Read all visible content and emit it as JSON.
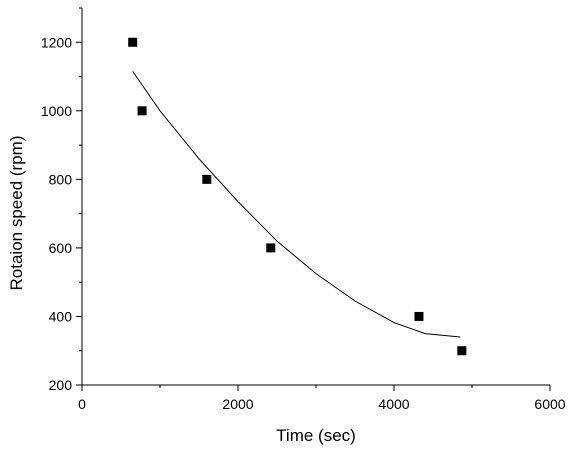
{
  "chart_data": {
    "type": "scatter",
    "title": "",
    "xlabel": "Time (sec)",
    "ylabel": "Rotaion speed (rpm)",
    "xlim": [
      0,
      6000
    ],
    "ylim": [
      200,
      1300
    ],
    "xticks": [
      0,
      2000,
      4000,
      6000
    ],
    "yticks": [
      200,
      400,
      600,
      800,
      1000,
      1200
    ],
    "grid": false,
    "legend": "none",
    "series": [
      {
        "type": "scatter",
        "marker": "square",
        "color": "#000000",
        "x": [
          650,
          770,
          1600,
          2420,
          4320,
          4870
        ],
        "y": [
          1200,
          1000,
          800,
          600,
          400,
          300
        ]
      },
      {
        "type": "line",
        "color": "#000000",
        "x": [
          650,
          1000,
          1500,
          2000,
          2500,
          3000,
          3500,
          4000,
          4400,
          4850
        ],
        "y": [
          1115,
          1000,
          860,
          735,
          620,
          525,
          445,
          382,
          350,
          340
        ]
      }
    ]
  }
}
